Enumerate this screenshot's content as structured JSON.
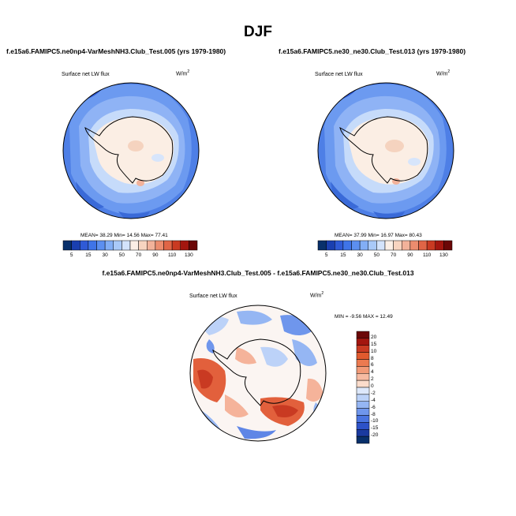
{
  "title": "DJF",
  "panels": {
    "left": {
      "case": "f.e15a6.FAMIPC5.ne0np4-VarMeshNH3.Club_Test.005 (yrs 1979-1980)",
      "variable": "Surface net LW flux",
      "units": "W/m",
      "units_exp": "2",
      "stats": "MEAN=  38.29  Min=  14.56  Max=  77.41"
    },
    "right": {
      "case": "f.e15a6.FAMIPC5.ne30_ne30.Club_Test.013 (yrs 1979-1980)",
      "variable": "Surface net LW flux",
      "units": "W/m",
      "units_exp": "2",
      "stats": "MEAN=  37.99  Min=  16.97  Max=  80.43"
    },
    "diff": {
      "case": "f.e15a6.FAMIPC5.ne0np4-VarMeshNH3.Club_Test.005 - f.e15a6.FAMIPC5.ne30_ne30.Club_Test.013",
      "variable": "Surface net LW flux",
      "units": "W/m",
      "units_exp": "2",
      "stats": "MIN =  -9.56 MAX =  12.49"
    }
  },
  "colorbar_main": {
    "labels": [
      "5",
      "15",
      "30",
      "50",
      "70",
      "90",
      "110",
      "130"
    ],
    "colors": [
      "#08306b",
      "#1a3fb0",
      "#2f5ad6",
      "#3f74e8",
      "#5c8ff0",
      "#82aef5",
      "#a9c9f8",
      "#d3e3fb",
      "#fbefe6",
      "#f7d4c0",
      "#f2b29a",
      "#ec8c6e",
      "#e06546",
      "#c93a22",
      "#a3160f",
      "#6b0707"
    ]
  },
  "colorbar_diff": {
    "labels": [
      "20",
      "15",
      "10",
      "8",
      "6",
      "4",
      "2",
      "0",
      "-2",
      "-4",
      "-6",
      "-8",
      "-10",
      "-15",
      "-20"
    ],
    "colors": [
      "#6b0707",
      "#a3160f",
      "#c93a22",
      "#e05a2e",
      "#ec7a50",
      "#f29a77",
      "#f7bba2",
      "#fbdccb",
      "#dde8fb",
      "#bcd2f8",
      "#95b6f3",
      "#6f96ec",
      "#4a74e0",
      "#2d52c8",
      "#1a3aa0",
      "#08306b"
    ]
  },
  "palette": {
    "ocean_dark": "#3a6ad8",
    "ocean_mid": "#5d8def",
    "ocean_light": "#8fb3f5",
    "ice_blue": "#c6dbfa",
    "land_cream": "#fbeee4",
    "land_peach": "#f5d3bf",
    "diff_red": "#e2603c",
    "diff_pink": "#f5b39a",
    "diff_blue": "#5f86e6",
    "diff_white": "#fbf5f2"
  }
}
